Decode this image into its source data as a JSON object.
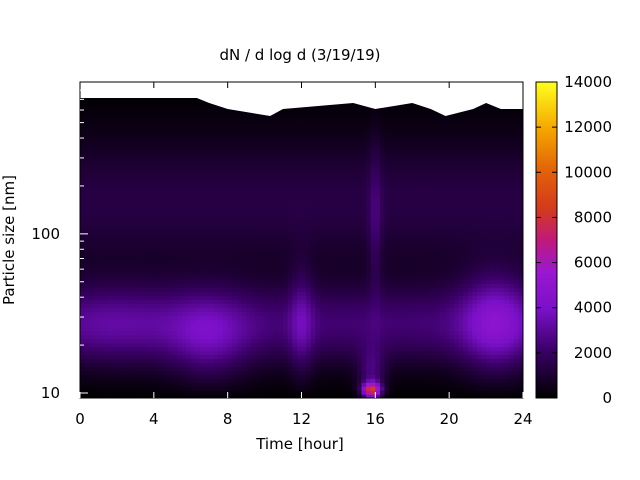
{
  "chart_data": {
    "type": "heatmap",
    "title": "dN / d log d (3/19/19)",
    "xlabel": "Time [hour]",
    "ylabel": "Particle size [nm]",
    "x_range": [
      0,
      24
    ],
    "x_ticks": [
      0,
      4,
      8,
      12,
      16,
      20,
      24
    ],
    "y_scale": "log",
    "y_ticks": [
      10,
      100
    ],
    "colorbar": {
      "range": [
        0,
        14000
      ],
      "ticks": [
        0,
        2000,
        4000,
        6000,
        8000,
        10000,
        12000,
        14000
      ],
      "colormap": "gnuplot (black-purple-red-orange-yellow)"
    },
    "background_color": "#000000",
    "features": [
      {
        "desc": "nucleation burst at small sizes",
        "time_hour": 15.8,
        "size_nm": 10,
        "value": 11000
      },
      {
        "desc": "broad mode",
        "time_hour": 2,
        "size_nm": 27,
        "value": 3500
      },
      {
        "desc": "broad mode",
        "time_hour": 7,
        "size_nm": 25,
        "value": 3000
      },
      {
        "desc": "broad mode",
        "time_hour": 22.5,
        "size_nm": 28,
        "value": 5000
      }
    ],
    "grid": false,
    "legend": "colorbar-right"
  }
}
